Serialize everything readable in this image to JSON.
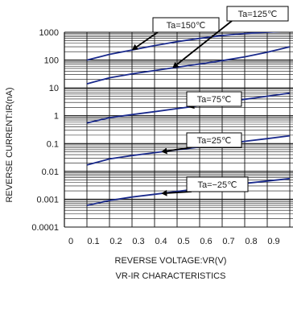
{
  "chart_data": {
    "type": "line",
    "title": "VR-IR CHARACTERISTICS",
    "xlabel": "REVERSE VOLTAGE:VR(V)",
    "ylabel": "REVERSE CURRENT:IR(nA)",
    "xlim": [
      0,
      1.0
    ],
    "ylim": [
      0.0001,
      1000
    ],
    "yscale": "log",
    "grid": true,
    "x_ticks": [
      "0",
      "0.1",
      "0.2",
      "0.3",
      "0.4",
      "0.5",
      "0.6",
      "0.7",
      "0.8",
      "0.9"
    ],
    "y_ticks": [
      "1000",
      "100",
      "10",
      "1",
      "0.1",
      "0.01",
      "0.001",
      "0.0001"
    ],
    "series": [
      {
        "name": "Ta=150℃",
        "x": [
          0.1,
          0.2,
          0.3,
          0.4,
          0.5,
          0.6,
          0.7,
          0.8,
          0.9,
          1.0
        ],
        "y": [
          100,
          160,
          230,
          330,
          460,
          600,
          760,
          900,
          1000,
          1100
        ]
      },
      {
        "name": "Ta=125℃",
        "x": [
          0.1,
          0.2,
          0.3,
          0.4,
          0.5,
          0.6,
          0.7,
          0.8,
          0.9,
          1.0
        ],
        "y": [
          14,
          23,
          32,
          42,
          55,
          72,
          95,
          130,
          190,
          300
        ]
      },
      {
        "name": "Ta=75℃",
        "x": [
          0.1,
          0.2,
          0.3,
          0.4,
          0.5,
          0.6,
          0.7,
          0.8,
          0.9,
          1.0
        ],
        "y": [
          0.55,
          0.85,
          1.1,
          1.4,
          1.8,
          2.3,
          3.0,
          3.9,
          5.0,
          6.5
        ]
      },
      {
        "name": "Ta=25℃",
        "x": [
          0.1,
          0.2,
          0.3,
          0.4,
          0.5,
          0.6,
          0.7,
          0.8,
          0.9,
          1.0
        ],
        "y": [
          0.017,
          0.028,
          0.037,
          0.047,
          0.06,
          0.075,
          0.095,
          0.12,
          0.15,
          0.19
        ]
      },
      {
        "name": "Ta=-25℃",
        "x": [
          0.1,
          0.2,
          0.3,
          0.4,
          0.5,
          0.6,
          0.7,
          0.8,
          0.9,
          1.0
        ],
        "y": [
          0.0006,
          0.0009,
          0.0012,
          0.0015,
          0.0019,
          0.0024,
          0.003,
          0.0037,
          0.0045,
          0.0055
        ]
      }
    ],
    "annotations": [
      {
        "text": "Ta=150℃",
        "series": 0
      },
      {
        "text": "Ta=125℃",
        "series": 1
      },
      {
        "text": "Ta=75℃",
        "series": 2
      },
      {
        "text": "Ta=25℃",
        "series": 3
      },
      {
        "text": "Ta=−25℃",
        "series": 4
      }
    ],
    "colors": {
      "line": "#1a2a8c",
      "grid": "#111111",
      "text": "#1a1a1a"
    }
  }
}
